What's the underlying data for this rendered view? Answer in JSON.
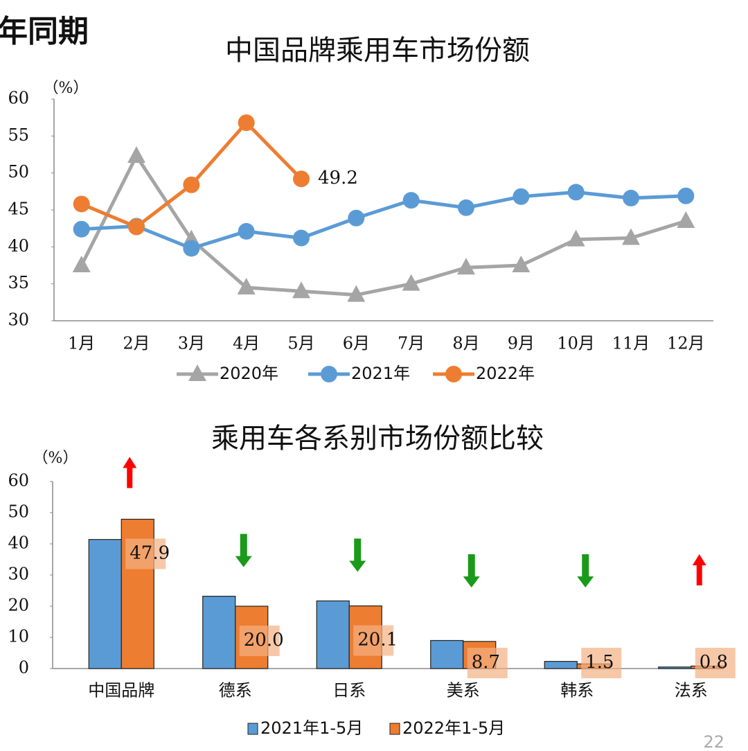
{
  "header": "上年同期",
  "page_number": "22",
  "chart_data": [
    {
      "type": "line",
      "title": "中国品牌乘用车市场份额",
      "unit": "（%）",
      "categories": [
        "1月",
        "2月",
        "3月",
        "4月",
        "5月",
        "6月",
        "7月",
        "8月",
        "9月",
        "10月",
        "11月",
        "12月"
      ],
      "ylim": [
        30,
        60
      ],
      "yticks": [
        30,
        35,
        40,
        45,
        50,
        55,
        60
      ],
      "series": [
        {
          "name": "2020年",
          "color": "#a5a5a5",
          "marker": "triangle",
          "values": [
            37.5,
            52.3,
            41,
            34.5,
            34,
            33.5,
            35,
            37.2,
            37.5,
            41,
            41.2,
            43.5
          ]
        },
        {
          "name": "2021年",
          "color": "#5b9bd5",
          "marker": "circle",
          "values": [
            42.4,
            42.8,
            39.8,
            42.1,
            41.2,
            43.9,
            46.3,
            45.3,
            46.8,
            47.4,
            46.6,
            46.9
          ]
        },
        {
          "name": "2022年",
          "color": "#ed7d31",
          "marker": "circle",
          "values": [
            45.8,
            42.7,
            48.4,
            56.8,
            49.2,
            null,
            null,
            null,
            null,
            null,
            null,
            null
          ],
          "value_labels": [
            null,
            null,
            null,
            null,
            "49.2",
            null,
            null,
            null,
            null,
            null,
            null,
            null
          ]
        }
      ]
    },
    {
      "type": "bar",
      "title": "乘用车各系别市场份额比较",
      "unit": "（%）",
      "categories": [
        "中国品牌",
        "德系",
        "日系",
        "美系",
        "韩系",
        "法系"
      ],
      "ylim": [
        0,
        60
      ],
      "yticks": [
        0,
        10,
        20,
        30,
        40,
        50,
        60
      ],
      "series": [
        {
          "name": "2021年1-5月",
          "color": "#5b9bd5",
          "values": [
            41.4,
            23.2,
            21.7,
            9.0,
            2.3,
            0.5
          ]
        },
        {
          "name": "2022年1-5月",
          "color": "#ed7d31",
          "values": [
            47.9,
            20.0,
            20.1,
            8.7,
            1.5,
            0.8
          ],
          "value_labels": [
            "47.9",
            "20.0",
            "20.1",
            "8.7",
            "1.5",
            "0.8"
          ]
        }
      ]
    }
  ]
}
